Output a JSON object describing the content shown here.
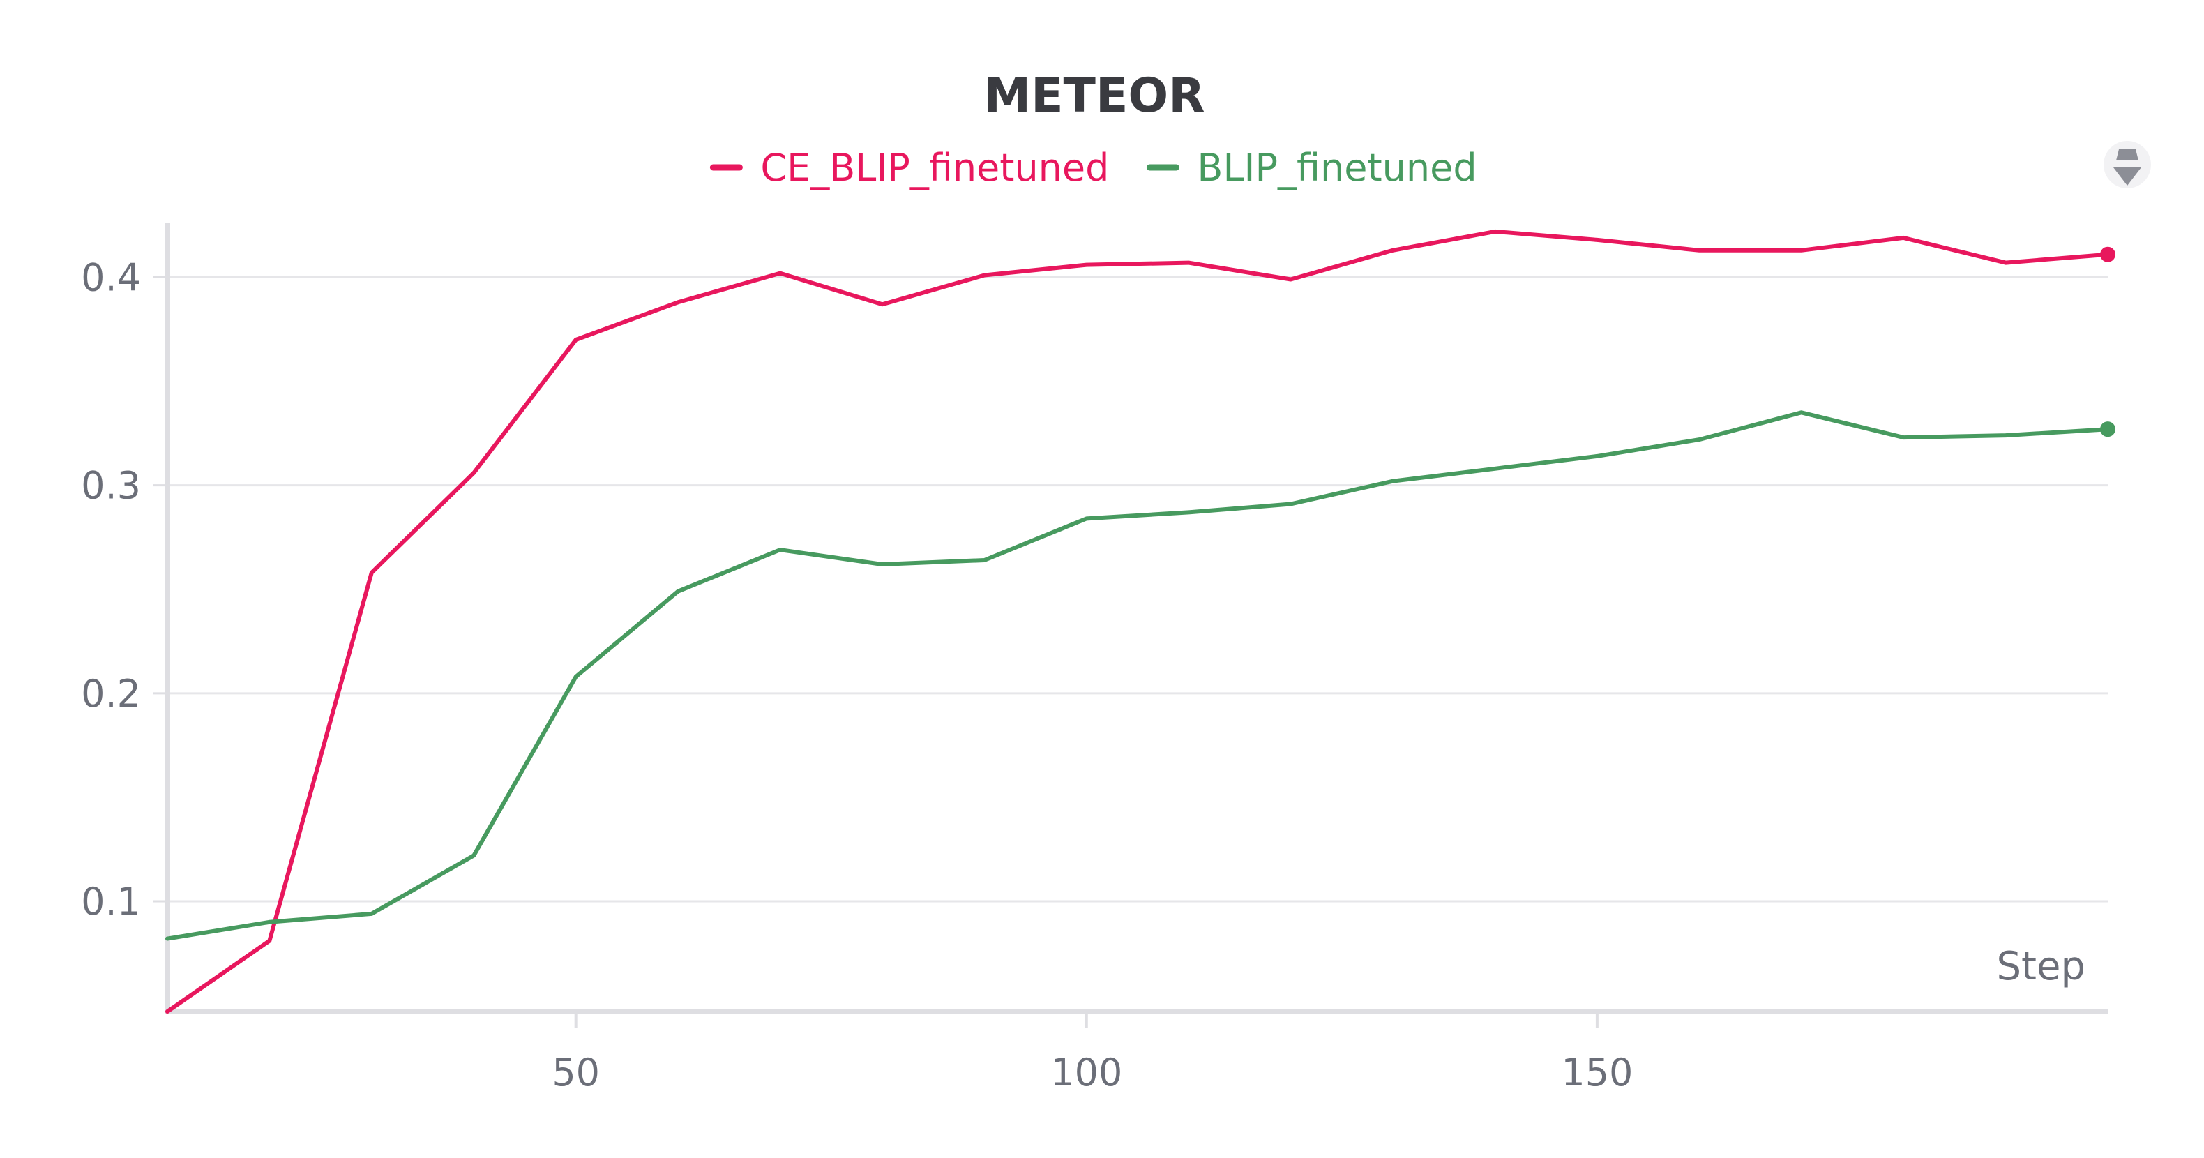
{
  "chart_data": {
    "type": "line",
    "title": "METEOR",
    "xlabel": "Step",
    "ylabel": "",
    "x": [
      10,
      20,
      30,
      40,
      50,
      60,
      70,
      80,
      90,
      100,
      110,
      120,
      130,
      140,
      150,
      160,
      170,
      180,
      190,
      200
    ],
    "xlim": [
      10,
      200
    ],
    "ylim": [
      0.047,
      0.42
    ],
    "x_ticks": [
      "50",
      "100",
      "150"
    ],
    "y_ticks": [
      "0.1",
      "0.2",
      "0.3",
      "0.4"
    ],
    "grid": true,
    "legend_position": "top-center",
    "series": [
      {
        "name": "CE_BLIP_finetuned",
        "color": "#e8175d",
        "values": [
          0.047,
          0.081,
          0.258,
          0.306,
          0.37,
          0.388,
          0.402,
          0.387,
          0.401,
          0.406,
          0.407,
          0.399,
          0.413,
          0.422,
          0.418,
          0.413,
          0.413,
          0.419,
          0.407,
          0.411
        ]
      },
      {
        "name": "BLIP_finetuned",
        "color": "#479a5f",
        "values": [
          0.082,
          0.09,
          0.094,
          0.122,
          0.208,
          0.249,
          0.269,
          0.262,
          0.264,
          0.284,
          0.287,
          0.291,
          0.302,
          0.308,
          0.314,
          0.322,
          0.335,
          0.323,
          0.324,
          0.327
        ]
      }
    ]
  },
  "ui": {
    "icon": "panel-sort-icon",
    "colors": {
      "grid": "#e6e6e9",
      "axis": "#dedee2",
      "text": "#6b6e78",
      "title": "#3a3b40"
    }
  }
}
